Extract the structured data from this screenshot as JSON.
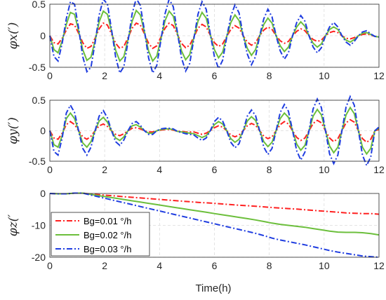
{
  "figure": {
    "xlabel": "Time(h)"
  },
  "colors": {
    "Bg=0.01 °/h": "#ff2020",
    "Bg=0.02 °/h": "#6cbf3c",
    "Bg=0.03 °/h": "#1f3de0"
  },
  "chart_data": [
    {
      "type": "line",
      "panel": "phi_x",
      "ylabel": "φx(′)",
      "xlim": [
        0,
        12
      ],
      "ylim": [
        -0.5,
        0.5
      ],
      "xticks": [
        0,
        2,
        4,
        6,
        8,
        10,
        12
      ],
      "yticks": [
        0.5,
        0,
        -0.5
      ],
      "grid": true,
      "x": [
        0,
        0.15,
        0.3,
        0.45,
        0.6,
        0.75,
        0.9,
        1.05,
        1.2,
        1.35,
        1.5,
        1.65,
        1.8,
        1.95,
        2.1,
        2.25,
        2.4,
        2.55,
        2.7,
        2.85,
        3.0,
        3.15,
        3.3,
        3.45,
        3.6,
        3.75,
        3.9,
        4.05,
        4.2,
        4.35,
        4.5,
        4.65,
        4.8,
        4.95,
        5.1,
        5.25,
        5.4,
        5.55,
        5.7,
        5.85,
        6.0,
        6.15,
        6.3,
        6.45,
        6.6,
        6.75,
        6.9,
        7.05,
        7.2,
        7.35,
        7.5,
        7.65,
        7.8,
        7.95,
        8.1,
        8.25,
        8.4,
        8.55,
        8.7,
        8.85,
        9.0,
        9.15,
        9.3,
        9.45,
        9.6,
        9.75,
        9.9,
        10.05,
        10.2,
        10.35,
        10.5,
        10.65,
        10.8,
        10.95,
        11.1,
        11.25,
        11.4,
        11.55,
        11.7,
        11.85,
        12.0
      ],
      "series": [
        {
          "name": "Bg=0.01 °/h",
          "style": "dashdot",
          "values": [
            0,
            -0.11,
            -0.13,
            -0.04,
            0.09,
            0.19,
            0.17,
            0.04,
            -0.11,
            -0.2,
            -0.17,
            -0.04,
            0.11,
            0.2,
            0.17,
            0.03,
            -0.12,
            -0.2,
            -0.17,
            -0.03,
            0.12,
            0.2,
            0.17,
            0.03,
            -0.12,
            -0.2,
            -0.16,
            -0.02,
            0.12,
            0.2,
            0.16,
            0.02,
            -0.12,
            -0.19,
            -0.15,
            -0.02,
            0.12,
            0.18,
            0.14,
            0.01,
            -0.11,
            -0.17,
            -0.13,
            -0.01,
            0.1,
            0.16,
            0.12,
            0.0,
            -0.1,
            -0.15,
            -0.11,
            0.0,
            0.09,
            0.14,
            0.1,
            0.0,
            -0.08,
            -0.12,
            -0.09,
            0.0,
            0.07,
            0.11,
            0.08,
            0.0,
            -0.06,
            -0.09,
            -0.07,
            0.0,
            0.05,
            0.07,
            0.05,
            0.0,
            -0.04,
            -0.05,
            -0.03,
            0.0,
            0.02,
            0.03,
            0.01,
            -0.01,
            -0.02
          ]
        },
        {
          "name": "Bg=0.02 °/h",
          "style": "solid",
          "values": [
            0,
            -0.22,
            -0.27,
            -0.08,
            0.18,
            0.37,
            0.34,
            0.08,
            -0.22,
            -0.39,
            -0.34,
            -0.08,
            0.22,
            0.39,
            0.34,
            0.07,
            -0.23,
            -0.4,
            -0.33,
            -0.06,
            0.23,
            0.4,
            0.33,
            0.06,
            -0.24,
            -0.4,
            -0.32,
            -0.05,
            0.24,
            0.39,
            0.31,
            0.04,
            -0.24,
            -0.38,
            -0.3,
            -0.03,
            0.23,
            0.37,
            0.28,
            0.02,
            -0.22,
            -0.35,
            -0.26,
            -0.01,
            0.21,
            0.33,
            0.24,
            0.0,
            -0.2,
            -0.31,
            -0.22,
            0.0,
            0.18,
            0.28,
            0.2,
            0.0,
            -0.16,
            -0.25,
            -0.18,
            0.0,
            0.14,
            0.22,
            0.15,
            0.0,
            -0.12,
            -0.18,
            -0.13,
            0.0,
            0.1,
            0.14,
            0.1,
            0.0,
            -0.07,
            -0.1,
            -0.06,
            0.0,
            0.04,
            0.05,
            0.02,
            -0.01,
            -0.02
          ]
        },
        {
          "name": "Bg=0.03 °/h",
          "style": "dashdot",
          "values": [
            0,
            -0.33,
            -0.4,
            -0.12,
            0.27,
            0.54,
            0.5,
            0.12,
            -0.33,
            -0.57,
            -0.5,
            -0.11,
            0.33,
            0.58,
            0.5,
            0.1,
            -0.34,
            -0.59,
            -0.49,
            -0.09,
            0.35,
            0.59,
            0.48,
            0.08,
            -0.35,
            -0.59,
            -0.47,
            -0.07,
            0.35,
            0.58,
            0.46,
            0.06,
            -0.35,
            -0.56,
            -0.44,
            -0.05,
            0.34,
            0.54,
            0.42,
            0.03,
            -0.33,
            -0.52,
            -0.39,
            -0.02,
            0.31,
            0.49,
            0.36,
            0.0,
            -0.29,
            -0.46,
            -0.33,
            0.0,
            0.27,
            0.42,
            0.3,
            0.0,
            -0.24,
            -0.37,
            -0.27,
            0.0,
            0.21,
            0.32,
            0.23,
            0.0,
            -0.18,
            -0.27,
            -0.19,
            0.0,
            0.14,
            0.21,
            0.14,
            0.0,
            -0.1,
            -0.15,
            -0.09,
            0.0,
            0.06,
            0.08,
            0.03,
            -0.01,
            -0.02
          ]
        }
      ]
    },
    {
      "type": "line",
      "panel": "phi_y",
      "ylabel": "φy(′)",
      "xlim": [
        0,
        12
      ],
      "ylim": [
        -0.5,
        0.5
      ],
      "xticks": [
        0,
        2,
        4,
        6,
        8,
        10,
        12
      ],
      "yticks": [
        0.5,
        0,
        -0.5
      ],
      "grid": true,
      "x": [
        0,
        0.15,
        0.3,
        0.45,
        0.6,
        0.75,
        0.9,
        1.05,
        1.2,
        1.35,
        1.5,
        1.65,
        1.8,
        1.95,
        2.1,
        2.25,
        2.4,
        2.55,
        2.7,
        2.85,
        3.0,
        3.15,
        3.3,
        3.45,
        3.6,
        3.75,
        3.9,
        4.05,
        4.2,
        4.35,
        4.5,
        4.65,
        4.8,
        4.95,
        5.1,
        5.25,
        5.4,
        5.55,
        5.7,
        5.85,
        6.0,
        6.15,
        6.3,
        6.45,
        6.6,
        6.75,
        6.9,
        7.05,
        7.2,
        7.35,
        7.5,
        7.65,
        7.8,
        7.95,
        8.1,
        8.25,
        8.4,
        8.55,
        8.7,
        8.85,
        9.0,
        9.15,
        9.3,
        9.45,
        9.6,
        9.75,
        9.9,
        10.05,
        10.2,
        10.35,
        10.5,
        10.65,
        10.8,
        10.95,
        11.1,
        11.25,
        11.4,
        11.55,
        11.7,
        11.85,
        12.0
      ],
      "series": [
        {
          "name": "Bg=0.01 °/h",
          "style": "dashdot",
          "values": [
            0,
            -0.12,
            -0.14,
            -0.04,
            0.1,
            0.15,
            0.1,
            0.0,
            -0.1,
            -0.14,
            -0.09,
            0.0,
            0.08,
            0.11,
            0.07,
            0.0,
            -0.06,
            -0.08,
            -0.05,
            0.0,
            0.04,
            0.05,
            0.03,
            0.0,
            -0.02,
            -0.02,
            0.0,
            0.01,
            0.02,
            0.02,
            0.01,
            -0.01,
            -0.01,
            -0.02,
            -0.02,
            -0.02,
            -0.04,
            -0.06,
            -0.04,
            0.0,
            0.05,
            0.08,
            0.06,
            0.0,
            -0.07,
            -0.1,
            -0.07,
            0.0,
            0.08,
            0.12,
            0.09,
            0.0,
            -0.09,
            -0.13,
            -0.1,
            0.0,
            0.1,
            0.15,
            0.11,
            0.0,
            -0.11,
            -0.16,
            -0.12,
            0.0,
            0.12,
            0.17,
            0.13,
            0.0,
            -0.12,
            -0.18,
            -0.13,
            0.0,
            0.13,
            0.18,
            0.14,
            0.0,
            -0.13,
            -0.19,
            -0.14,
            0.0,
            0.02
          ]
        },
        {
          "name": "Bg=0.02 °/h",
          "style": "solid",
          "values": [
            0,
            -0.23,
            -0.27,
            -0.08,
            0.2,
            0.29,
            0.2,
            0.0,
            -0.2,
            -0.27,
            -0.18,
            0.0,
            0.16,
            0.22,
            0.14,
            0.0,
            -0.12,
            -0.16,
            -0.1,
            0.0,
            0.08,
            0.1,
            0.06,
            0.0,
            -0.04,
            -0.04,
            0.0,
            0.02,
            0.03,
            0.03,
            0.02,
            -0.01,
            -0.02,
            -0.03,
            -0.04,
            -0.05,
            -0.08,
            -0.11,
            -0.08,
            0.0,
            0.1,
            0.15,
            0.11,
            0.0,
            -0.13,
            -0.19,
            -0.14,
            0.0,
            0.16,
            0.23,
            0.17,
            0.0,
            -0.18,
            -0.26,
            -0.19,
            0.0,
            0.2,
            0.29,
            0.22,
            0.0,
            -0.22,
            -0.32,
            -0.24,
            0.0,
            0.24,
            0.35,
            0.26,
            0.0,
            -0.25,
            -0.36,
            -0.27,
            0.0,
            0.26,
            0.38,
            0.28,
            0.0,
            -0.27,
            -0.38,
            -0.29,
            0.0,
            0.04
          ]
        },
        {
          "name": "Bg=0.03 °/h",
          "style": "dashdot",
          "values": [
            0,
            -0.34,
            -0.4,
            -0.12,
            0.29,
            0.42,
            0.3,
            0.0,
            -0.29,
            -0.4,
            -0.27,
            0.0,
            0.24,
            0.33,
            0.21,
            0.0,
            -0.18,
            -0.24,
            -0.15,
            0.0,
            0.12,
            0.15,
            0.09,
            0.0,
            -0.06,
            -0.06,
            0.0,
            0.03,
            0.04,
            0.04,
            0.03,
            -0.01,
            -0.03,
            -0.05,
            -0.06,
            -0.07,
            -0.12,
            -0.16,
            -0.12,
            0.0,
            0.15,
            0.22,
            0.16,
            0.0,
            -0.19,
            -0.28,
            -0.21,
            0.0,
            0.24,
            0.34,
            0.25,
            0.0,
            -0.27,
            -0.39,
            -0.29,
            0.0,
            0.3,
            0.43,
            0.32,
            0.0,
            -0.33,
            -0.48,
            -0.35,
            0.0,
            0.36,
            0.52,
            0.38,
            0.0,
            -0.38,
            -0.54,
            -0.4,
            0.0,
            0.39,
            0.56,
            0.42,
            0.0,
            -0.4,
            -0.57,
            -0.43,
            0.0,
            0.06
          ]
        }
      ]
    },
    {
      "type": "line",
      "panel": "phi_z",
      "ylabel": "φz(′",
      "xlim": [
        0,
        12
      ],
      "ylim": [
        -20,
        0
      ],
      "xticks": [
        0,
        2,
        4,
        6,
        8,
        10,
        12
      ],
      "yticks": [
        0,
        -10,
        -20
      ],
      "grid": true,
      "legend": "bottom-left",
      "x": [
        0,
        0.3,
        0.6,
        0.9,
        1.2,
        1.5,
        1.8,
        2.1,
        2.4,
        2.7,
        3.0,
        3.3,
        3.6,
        3.9,
        4.2,
        4.5,
        4.8,
        5.1,
        5.4,
        5.7,
        6.0,
        6.3,
        6.6,
        6.9,
        7.2,
        7.5,
        7.8,
        8.1,
        8.4,
        8.7,
        9.0,
        9.3,
        9.6,
        9.9,
        10.2,
        10.5,
        10.8,
        11.1,
        11.4,
        11.7,
        12.0
      ],
      "series": [
        {
          "name": "Bg=0.01 °/h",
          "style": "dashdot",
          "values": [
            0,
            -0.1,
            -0.1,
            0.1,
            0.1,
            -0.2,
            -0.4,
            -0.6,
            -0.8,
            -1.0,
            -1.2,
            -1.4,
            -1.6,
            -1.8,
            -2.0,
            -2.2,
            -2.4,
            -2.6,
            -2.8,
            -2.95,
            -3.1,
            -3.3,
            -3.5,
            -3.7,
            -3.85,
            -4.0,
            -4.2,
            -4.4,
            -4.6,
            -4.75,
            -4.9,
            -5.1,
            -5.3,
            -5.5,
            -5.7,
            -5.9,
            -6.1,
            -6.2,
            -6.3,
            -6.3,
            -6.5
          ]
        },
        {
          "name": "Bg=0.02 °/h",
          "style": "solid",
          "values": [
            0,
            -0.1,
            -0.1,
            0.1,
            0.1,
            -0.3,
            -0.7,
            -1.1,
            -1.5,
            -1.9,
            -2.3,
            -2.7,
            -3.1,
            -3.5,
            -3.9,
            -4.3,
            -4.7,
            -5.1,
            -5.5,
            -5.9,
            -6.3,
            -6.7,
            -7.1,
            -7.5,
            -7.9,
            -8.3,
            -8.8,
            -9.3,
            -9.7,
            -10.0,
            -10.3,
            -10.6,
            -11.0,
            -11.4,
            -11.8,
            -12.1,
            -12.2,
            -12.2,
            -12.3,
            -12.6,
            -13.0
          ]
        },
        {
          "name": "Bg=0.03 °/h",
          "style": "dashdot",
          "values": [
            0,
            -0.1,
            -0.1,
            0.1,
            0.1,
            -0.5,
            -1.1,
            -1.7,
            -2.3,
            -2.9,
            -3.5,
            -4.1,
            -4.7,
            -5.3,
            -5.9,
            -6.5,
            -7.1,
            -7.7,
            -8.3,
            -8.9,
            -9.5,
            -10.1,
            -10.7,
            -11.3,
            -11.9,
            -12.5,
            -13.2,
            -14.0,
            -14.6,
            -15.1,
            -15.6,
            -16.1,
            -16.7,
            -17.3,
            -17.9,
            -18.4,
            -18.8,
            -19.2,
            -19.6,
            -19.8,
            -20.0
          ]
        }
      ]
    }
  ]
}
